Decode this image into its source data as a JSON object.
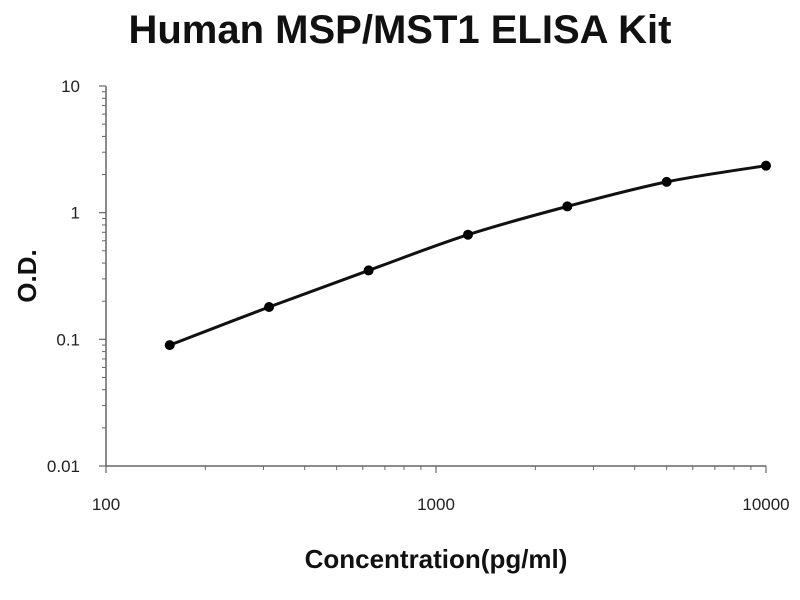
{
  "chart_data": {
    "type": "scatter",
    "title": "Human MSP/MST1 ELISA Kit",
    "xlabel": "Concentration(pg/ml)",
    "ylabel": "O.D.",
    "x_scale": "log",
    "y_scale": "log",
    "xlim": [
      100,
      10000
    ],
    "ylim": [
      0.01,
      10
    ],
    "x_ticks": [
      {
        "value": 100,
        "label": "100"
      },
      {
        "value": 1000,
        "label": "1000"
      },
      {
        "value": 10000,
        "label": "10000"
      }
    ],
    "y_ticks": [
      {
        "value": 0.01,
        "label": "0.01"
      },
      {
        "value": 0.1,
        "label": "0.1"
      },
      {
        "value": 1,
        "label": "1"
      },
      {
        "value": 10,
        "label": "10"
      }
    ],
    "grid": false,
    "legend": "none",
    "fitted_curve": true,
    "series": [
      {
        "points": [
          {
            "x": 156,
            "y": 0.09
          },
          {
            "x": 312,
            "y": 0.18
          },
          {
            "x": 625,
            "y": 0.35
          },
          {
            "x": 1250,
            "y": 0.67
          },
          {
            "x": 2500,
            "y": 1.12
          },
          {
            "x": 5000,
            "y": 1.75
          },
          {
            "x": 10000,
            "y": 2.35
          }
        ]
      }
    ],
    "colors": {
      "curve": "#111111",
      "points": "#000000",
      "axis": "#666666"
    }
  }
}
